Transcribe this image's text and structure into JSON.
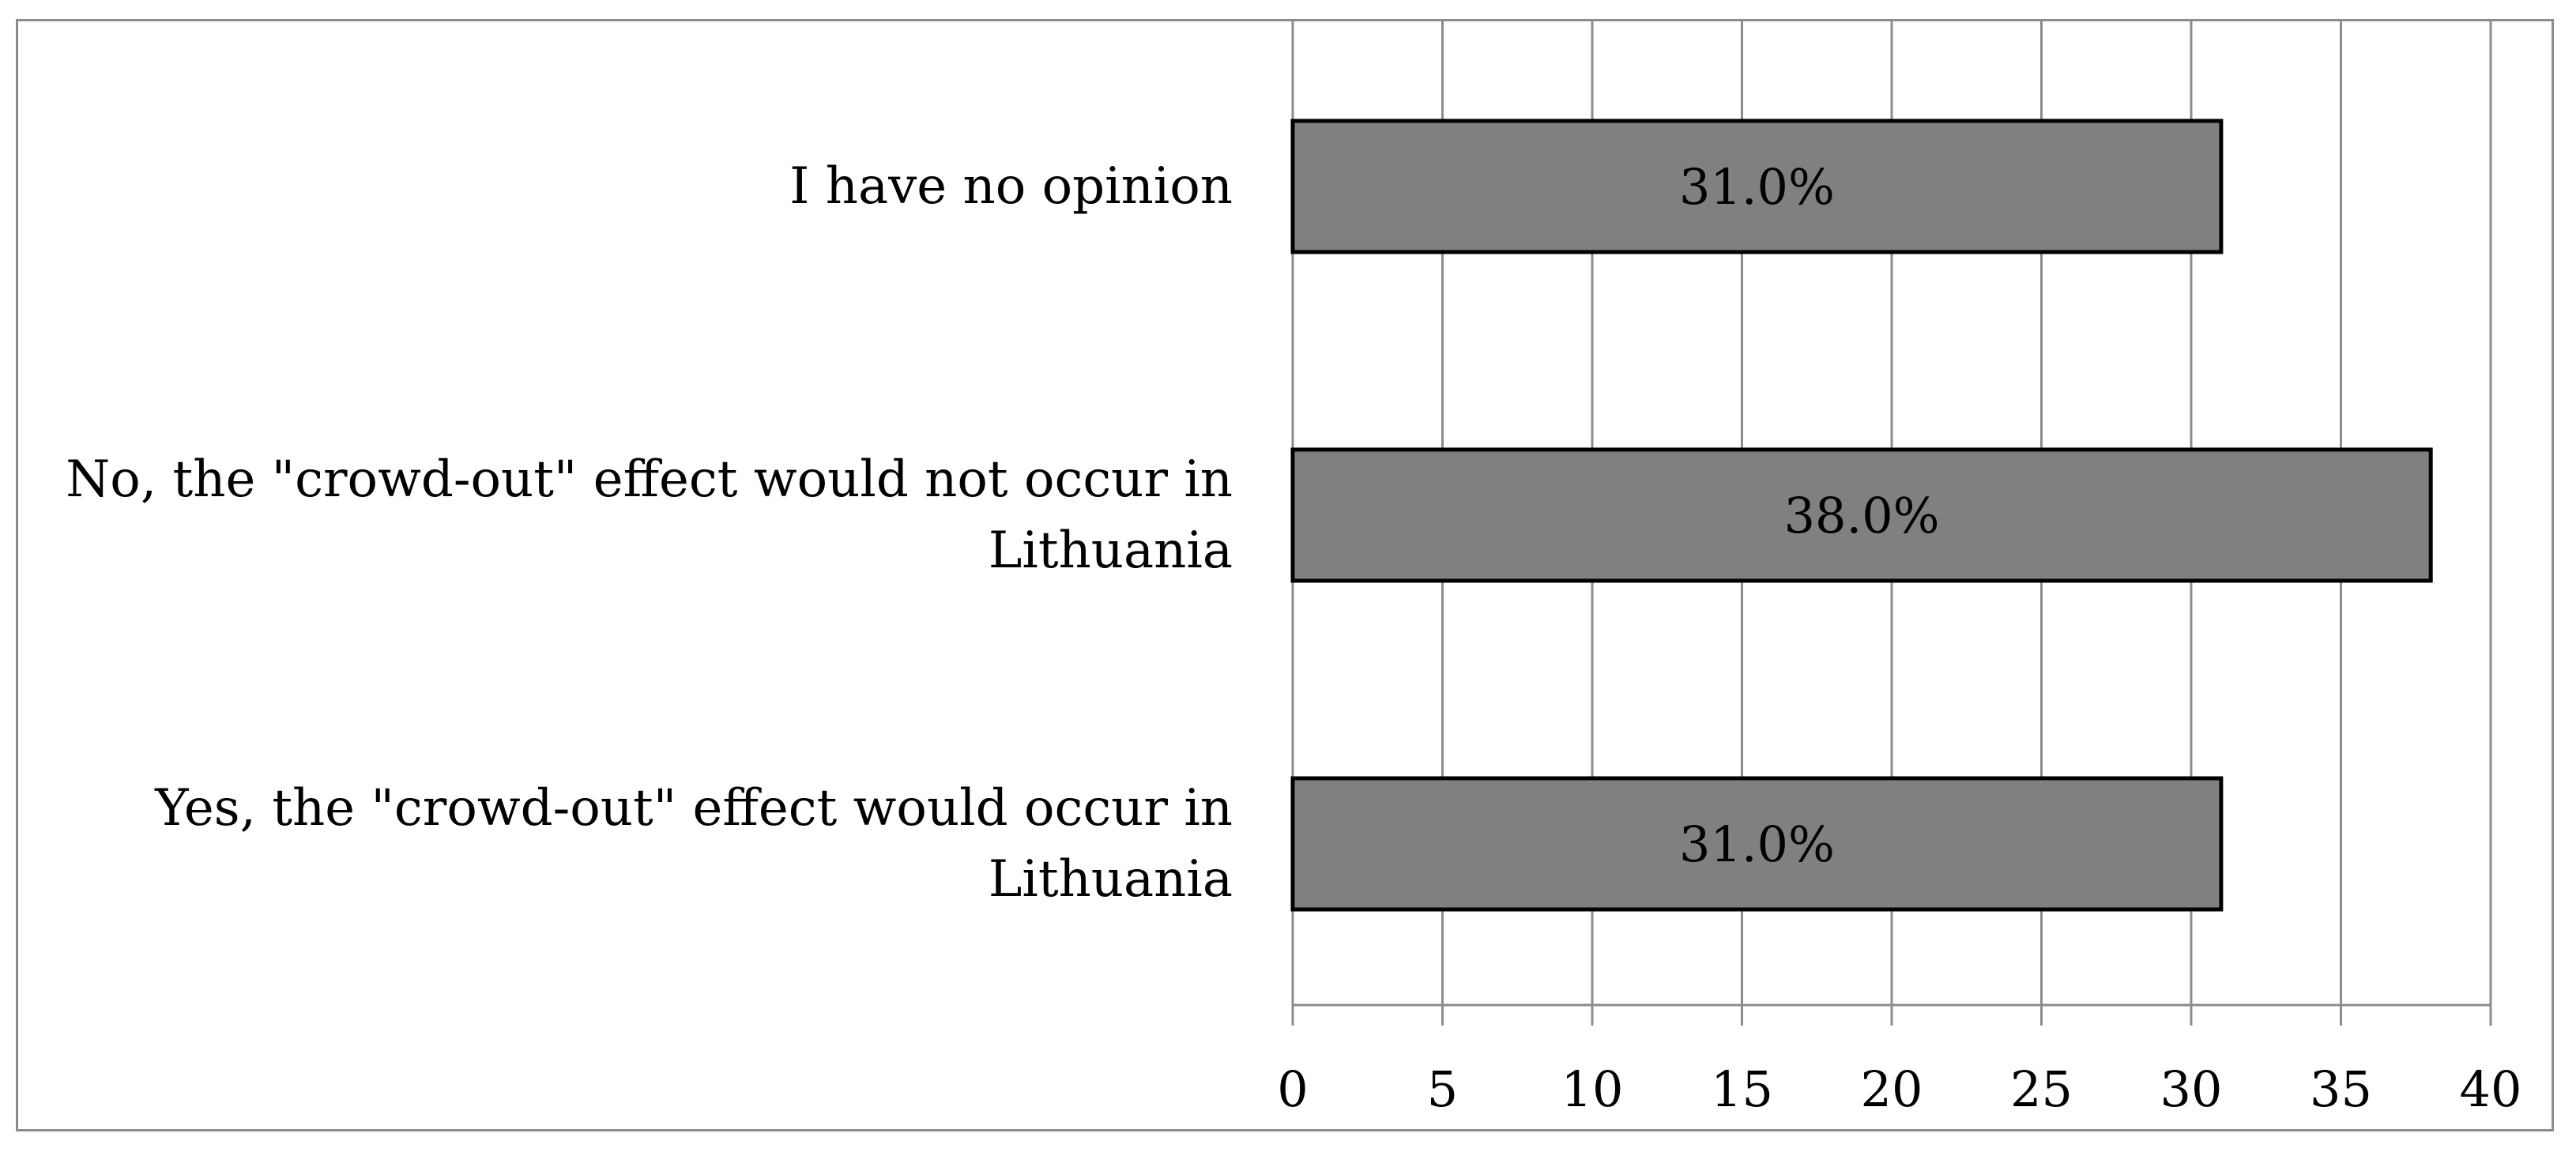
{
  "chart_data": {
    "type": "bar",
    "orientation": "horizontal",
    "title": "",
    "xlabel": "",
    "ylabel": "",
    "categories": [
      "I have no opinion",
      "No, the \"crowd-out\" effect would not occur in Lithuania",
      "Yes, the \"crowd-out\" effect would occur in Lithuania"
    ],
    "values": [
      31,
      38,
      31
    ],
    "data_labels": [
      "31.0%",
      "38.0%",
      "31.0%"
    ],
    "xlim": [
      0,
      40
    ],
    "x_ticks": [
      0,
      5,
      10,
      15,
      20,
      25,
      30,
      35,
      40
    ],
    "x_tick_labels": [
      "0",
      "5",
      "10",
      "15",
      "20",
      "25",
      "30",
      "35",
      "40"
    ],
    "grid": "vertical",
    "legend": "none",
    "colors": {
      "bar_fill": "#808080",
      "bar_stroke": "#000000",
      "grid": "#8c8c8c",
      "frame": "#8c8c8c"
    }
  }
}
